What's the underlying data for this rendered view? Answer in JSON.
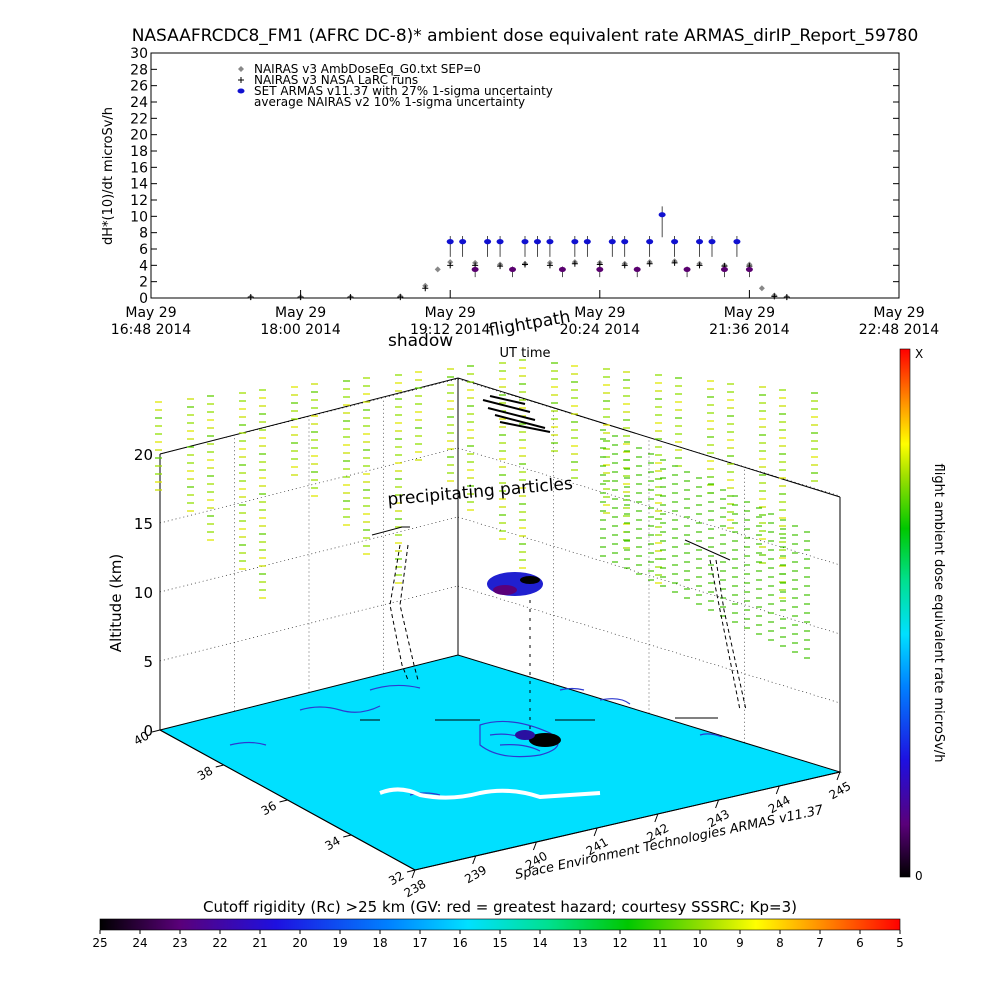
{
  "title": "NASAAFRCDC8_FM1 (AFRC DC-8)* ambient dose equivalent rate ARMAS_dirIP_Report_59780",
  "chart_data": [
    {
      "type": "scatter",
      "ylabel": "dH*(10)/dt microSv/h",
      "xlabel": "UT time",
      "ylim": [
        0,
        30
      ],
      "yticks": [
        "0",
        "2",
        "4",
        "6",
        "8",
        "10",
        "12",
        "14",
        "16",
        "18",
        "20",
        "22",
        "24",
        "26",
        "28",
        "30"
      ],
      "xticks": [
        {
          "l1": "May 29",
          "l2": "16:48 2014"
        },
        {
          "l1": "May 29",
          "l2": "18:00 2014"
        },
        {
          "l1": "May 29",
          "l2": "19:12 2014"
        },
        {
          "l1": "May 29",
          "l2": "20:24 2014"
        },
        {
          "l1": "May 29",
          "l2": "21:36 2014"
        },
        {
          "l1": "May 29",
          "l2": "22:48 2014"
        }
      ],
      "legend": [
        {
          "label": "NAIRAS v3 AmbDoseEq_G0.txt SEP=0",
          "marker": "diamond",
          "color": "#888888"
        },
        {
          "label": "NAIRAS v3 NASA LaRC runs",
          "marker": "plus",
          "color": "#000000"
        },
        {
          "label": "SET ARMAS v11.37 with 27% 1-sigma uncertainty",
          "marker": "dot",
          "color": "#1010d0"
        },
        {
          "label": "average NAIRAS v2 10% 1-sigma uncertainty",
          "marker": "none",
          "color": "#000000"
        }
      ],
      "legend_position": "top-left",
      "series": [
        {
          "name": "NAIRAS v3 AmbDoseEq_G0.txt SEP=0",
          "marker": "diamond",
          "color": "#888888",
          "x": [
            "17:36",
            "18:00",
            "18:24",
            "18:48",
            "19:00",
            "19:06",
            "19:12",
            "19:24",
            "19:36",
            "19:48",
            "20:00",
            "20:12",
            "20:24",
            "20:36",
            "20:48",
            "21:00",
            "21:12",
            "21:24",
            "21:36",
            "21:42",
            "21:48",
            "21:54"
          ],
          "y": [
            0.1,
            0.1,
            0.1,
            0.2,
            1.5,
            3.5,
            4.4,
            4.3,
            4.1,
            4.2,
            4.3,
            4.4,
            4.3,
            4.2,
            4.4,
            4.5,
            4.2,
            4.0,
            4.1,
            1.2,
            0.3,
            0.1
          ]
        },
        {
          "name": "NAIRAS v3 NASA LaRC runs",
          "marker": "plus",
          "color": "#000000",
          "x": [
            "17:36",
            "18:00",
            "18:24",
            "18:48",
            "19:00",
            "19:12",
            "19:24",
            "19:36",
            "19:48",
            "20:00",
            "20:12",
            "20:24",
            "20:36",
            "20:48",
            "21:00",
            "21:12",
            "21:24",
            "21:36",
            "21:48",
            "21:54"
          ],
          "y": [
            0.1,
            0.1,
            0.1,
            0.1,
            1.2,
            4.0,
            4.0,
            3.9,
            4.1,
            4.0,
            4.2,
            4.1,
            4.0,
            4.2,
            4.3,
            4.0,
            3.9,
            3.9,
            0.2,
            0.1
          ]
        },
        {
          "name": "SET ARMAS v11.37 with 27% 1-sigma uncertainty",
          "marker": "dot",
          "color": "#1010d0",
          "x": [
            "19:12",
            "19:18",
            "19:24",
            "19:30",
            "19:36",
            "19:42",
            "19:48",
            "19:54",
            "20:00",
            "20:06",
            "20:12",
            "20:18",
            "20:24",
            "20:30",
            "20:36",
            "20:42",
            "20:48",
            "20:54",
            "21:00",
            "21:06",
            "21:12",
            "21:18",
            "21:24",
            "21:30",
            "21:36"
          ],
          "y": [
            6.9,
            6.9,
            3.5,
            6.9,
            6.9,
            3.5,
            6.9,
            6.9,
            6.9,
            3.5,
            6.9,
            6.9,
            3.5,
            6.9,
            6.9,
            3.5,
            6.9,
            10.2,
            6.9,
            3.5,
            6.9,
            6.9,
            3.5,
            6.9,
            3.5
          ]
        }
      ]
    },
    {
      "type": "scatter",
      "zlabel": "Altitude (km)",
      "ztick_labels": [
        "0",
        "5",
        "10",
        "15",
        "20"
      ],
      "xtick_labels": [
        "238",
        "239",
        "240",
        "241",
        "242",
        "243",
        "244",
        "245"
      ],
      "ytick_labels": [
        "32",
        "34",
        "36",
        "38",
        "40"
      ],
      "annotations": {
        "flightpath": "flightpath",
        "shadow": "shadow",
        "precipitating": "precipitating particles",
        "credit": "Space Environment Technologies ARMAS v11.37"
      }
    }
  ],
  "colorbar_right": {
    "label": "flight ambient dose equivalent rate microSv/h",
    "top_label": "X",
    "bottom_label": "0"
  },
  "colorbar_bottom": {
    "title": "Cutoff rigidity (Rc) >25 km (GV: red = greatest hazard; courtesy SSSRC; Kp=3)",
    "ticks": [
      "25",
      "24",
      "23",
      "22",
      "21",
      "20",
      "19",
      "18",
      "17",
      "16",
      "15",
      "14",
      "13",
      "12",
      "11",
      "10",
      "9",
      "8",
      "7",
      "6",
      "5"
    ]
  }
}
